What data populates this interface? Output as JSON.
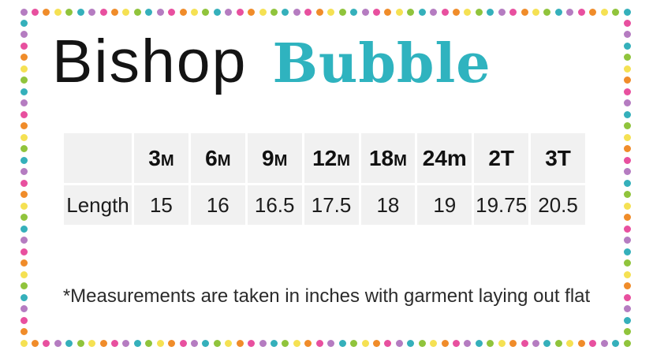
{
  "title": {
    "primary": "Bishop",
    "secondary": "Bubble"
  },
  "colors": {
    "accent_teal": "#2fb3bf",
    "table_cell_bg": "#f1f1f1",
    "text": "#1a1a1a",
    "title_black": "#141414"
  },
  "border": {
    "palette": [
      "#b57cc1",
      "#e8509f",
      "#f08c2a",
      "#f5e153",
      "#90c43c",
      "#35b0bb"
    ]
  },
  "chart_data": {
    "type": "table",
    "title": "Bishop Bubble",
    "columns": [
      "3M",
      "6M",
      "9M",
      "12M",
      "18M",
      "24m",
      "2T",
      "3T"
    ],
    "rows": [
      {
        "label": "Length",
        "values": [
          "15",
          "16",
          "16.5",
          "17.5",
          "18",
          "19",
          "19.75",
          "20.5"
        ]
      }
    ],
    "units": "inches"
  },
  "footnote": "*Measurements are taken in inches with garment laying out flat"
}
